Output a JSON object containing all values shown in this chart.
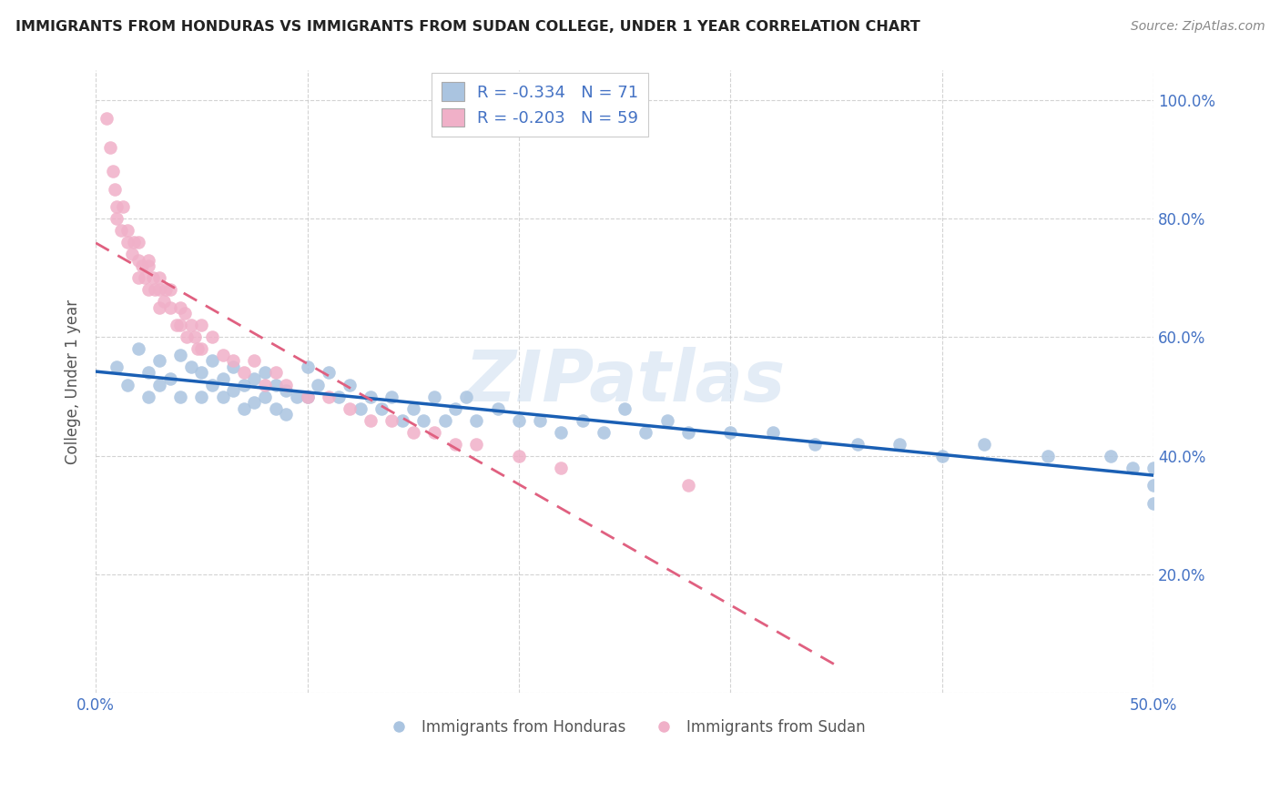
{
  "title": "IMMIGRANTS FROM HONDURAS VS IMMIGRANTS FROM SUDAN COLLEGE, UNDER 1 YEAR CORRELATION CHART",
  "source": "Source: ZipAtlas.com",
  "ylabel": "College, Under 1 year",
  "xlim": [
    0.0,
    0.5
  ],
  "ylim": [
    0.0,
    1.05
  ],
  "xtick_vals": [
    0.0,
    0.1,
    0.2,
    0.3,
    0.4,
    0.5
  ],
  "xticklabels": [
    "0.0%",
    "",
    "",
    "",
    "",
    "50.0%"
  ],
  "ytick_vals": [
    0.0,
    0.2,
    0.4,
    0.6,
    0.8,
    1.0
  ],
  "yticklabels_right": [
    "",
    "20.0%",
    "40.0%",
    "60.0%",
    "80.0%",
    "100.0%"
  ],
  "honduras_R": -0.334,
  "honduras_N": 71,
  "sudan_R": -0.203,
  "sudan_N": 59,
  "legend_labels": [
    "Immigrants from Honduras",
    "Immigrants from Sudan"
  ],
  "dot_color_honduras": "#aac4e0",
  "dot_color_sudan": "#f0b0c8",
  "line_color_honduras": "#1a5fb4",
  "line_color_sudan": "#e06080",
  "background_color": "#ffffff",
  "watermark": "ZIPatlas",
  "grid_color": "#c8c8c8",
  "honduras_scatter_x": [
    0.01,
    0.015,
    0.02,
    0.025,
    0.025,
    0.03,
    0.03,
    0.035,
    0.04,
    0.04,
    0.045,
    0.05,
    0.05,
    0.055,
    0.055,
    0.06,
    0.06,
    0.065,
    0.065,
    0.07,
    0.07,
    0.075,
    0.075,
    0.08,
    0.08,
    0.085,
    0.085,
    0.09,
    0.09,
    0.095,
    0.1,
    0.1,
    0.105,
    0.11,
    0.115,
    0.12,
    0.125,
    0.13,
    0.135,
    0.14,
    0.145,
    0.15,
    0.155,
    0.16,
    0.165,
    0.17,
    0.175,
    0.18,
    0.19,
    0.2,
    0.21,
    0.22,
    0.23,
    0.24,
    0.25,
    0.26,
    0.27,
    0.28,
    0.3,
    0.32,
    0.34,
    0.36,
    0.38,
    0.4,
    0.42,
    0.45,
    0.48,
    0.49,
    0.5,
    0.5,
    0.5
  ],
  "honduras_scatter_y": [
    0.55,
    0.52,
    0.58,
    0.54,
    0.5,
    0.56,
    0.52,
    0.53,
    0.57,
    0.5,
    0.55,
    0.54,
    0.5,
    0.56,
    0.52,
    0.53,
    0.5,
    0.55,
    0.51,
    0.52,
    0.48,
    0.53,
    0.49,
    0.54,
    0.5,
    0.52,
    0.48,
    0.51,
    0.47,
    0.5,
    0.55,
    0.5,
    0.52,
    0.54,
    0.5,
    0.52,
    0.48,
    0.5,
    0.48,
    0.5,
    0.46,
    0.48,
    0.46,
    0.5,
    0.46,
    0.48,
    0.5,
    0.46,
    0.48,
    0.46,
    0.46,
    0.44,
    0.46,
    0.44,
    0.48,
    0.44,
    0.46,
    0.44,
    0.44,
    0.44,
    0.42,
    0.42,
    0.42,
    0.4,
    0.42,
    0.4,
    0.4,
    0.38,
    0.38,
    0.35,
    0.32
  ],
  "sudan_scatter_x": [
    0.005,
    0.007,
    0.008,
    0.009,
    0.01,
    0.01,
    0.012,
    0.013,
    0.015,
    0.015,
    0.017,
    0.018,
    0.02,
    0.02,
    0.02,
    0.022,
    0.023,
    0.025,
    0.025,
    0.025,
    0.027,
    0.028,
    0.03,
    0.03,
    0.03,
    0.032,
    0.033,
    0.035,
    0.035,
    0.038,
    0.04,
    0.04,
    0.042,
    0.043,
    0.045,
    0.047,
    0.048,
    0.05,
    0.05,
    0.055,
    0.06,
    0.065,
    0.07,
    0.075,
    0.08,
    0.085,
    0.09,
    0.1,
    0.11,
    0.12,
    0.13,
    0.14,
    0.15,
    0.16,
    0.17,
    0.18,
    0.2,
    0.22,
    0.28
  ],
  "sudan_scatter_y": [
    0.97,
    0.92,
    0.88,
    0.85,
    0.82,
    0.8,
    0.78,
    0.82,
    0.78,
    0.76,
    0.74,
    0.76,
    0.73,
    0.7,
    0.76,
    0.72,
    0.7,
    0.72,
    0.68,
    0.73,
    0.7,
    0.68,
    0.68,
    0.65,
    0.7,
    0.66,
    0.68,
    0.65,
    0.68,
    0.62,
    0.65,
    0.62,
    0.64,
    0.6,
    0.62,
    0.6,
    0.58,
    0.62,
    0.58,
    0.6,
    0.57,
    0.56,
    0.54,
    0.56,
    0.52,
    0.54,
    0.52,
    0.5,
    0.5,
    0.48,
    0.46,
    0.46,
    0.44,
    0.44,
    0.42,
    0.42,
    0.4,
    0.38,
    0.35
  ]
}
